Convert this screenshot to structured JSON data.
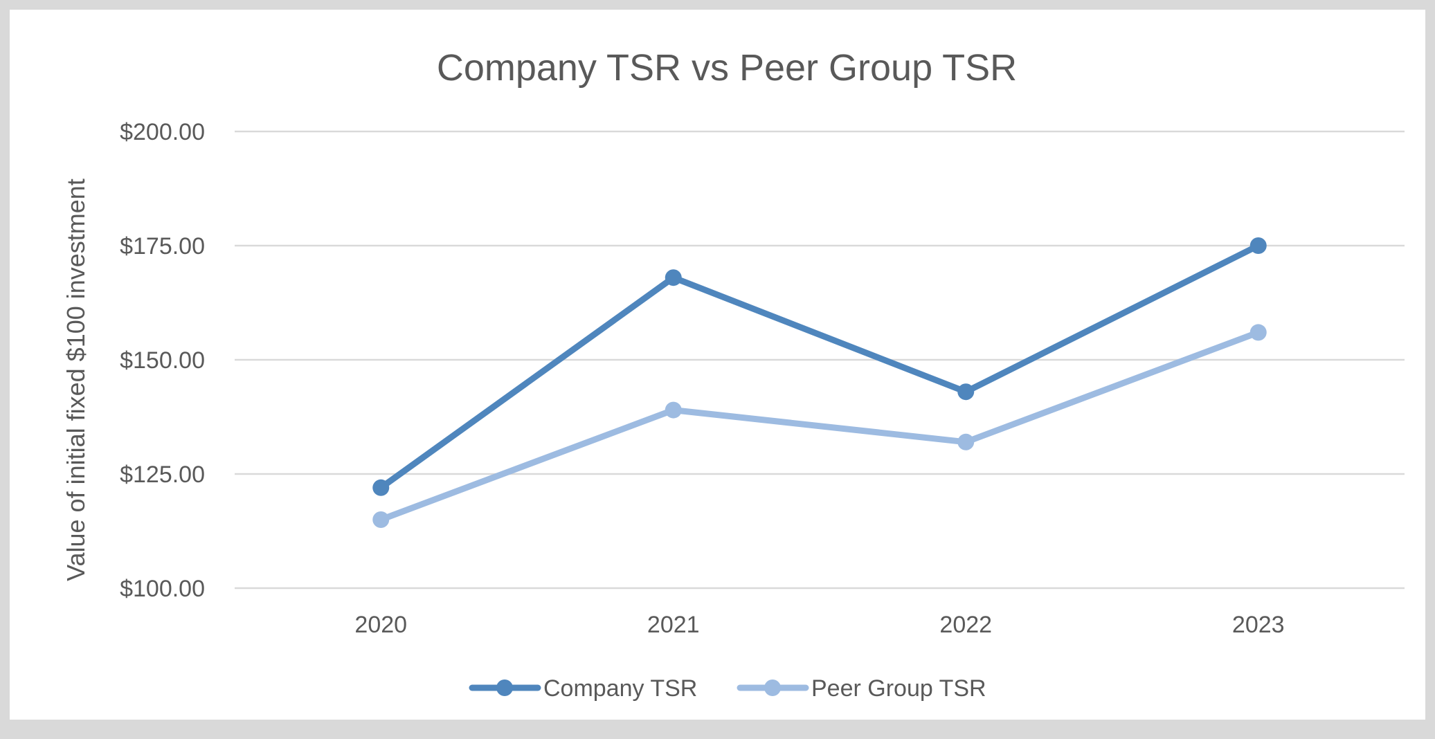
{
  "chart_data": {
    "type": "line",
    "title": "Company TSR vs Peer Group TSR",
    "xlabel": "",
    "ylabel": "Value of initial fixed $100 investment",
    "categories": [
      "2020",
      "2021",
      "2022",
      "2023"
    ],
    "ylim": [
      100,
      200
    ],
    "yticks": [
      100,
      125,
      150,
      175,
      200
    ],
    "ytick_labels": [
      "$100.00",
      "$125.00",
      "$150.00",
      "$175.00",
      "$200.00"
    ],
    "grid": true,
    "legend_position": "bottom",
    "series": [
      {
        "name": "Company TSR",
        "color": "#4f86bd",
        "values": [
          122,
          168,
          143,
          175
        ]
      },
      {
        "name": "Peer Group TSR",
        "color": "#9dbbe1",
        "values": [
          115,
          139,
          132,
          156
        ]
      }
    ]
  }
}
